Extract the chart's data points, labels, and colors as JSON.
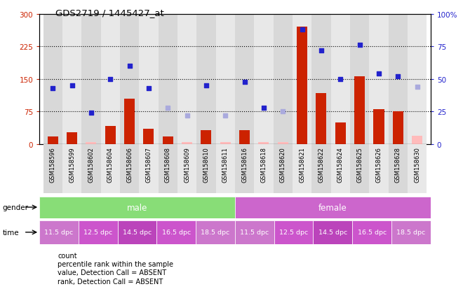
{
  "title": "GDS2719 / 1445427_at",
  "samples": [
    "GSM158596",
    "GSM158599",
    "GSM158602",
    "GSM158604",
    "GSM158606",
    "GSM158607",
    "GSM158608",
    "GSM158609",
    "GSM158610",
    "GSM158611",
    "GSM158616",
    "GSM158618",
    "GSM158620",
    "GSM158621",
    "GSM158622",
    "GSM158624",
    "GSM158625",
    "GSM158626",
    "GSM158628",
    "GSM158630"
  ],
  "bar_values": [
    18,
    28,
    5,
    42,
    105,
    35,
    18,
    5,
    32,
    5,
    32,
    5,
    5,
    270,
    118,
    50,
    157,
    80,
    75,
    20
  ],
  "bar_absent": [
    false,
    false,
    true,
    false,
    false,
    false,
    false,
    true,
    false,
    true,
    false,
    true,
    true,
    false,
    false,
    false,
    false,
    false,
    false,
    true
  ],
  "rank_values": [
    43,
    45,
    24,
    50,
    60,
    43,
    28,
    22,
    45,
    22,
    48,
    28,
    25,
    88,
    72,
    50,
    76,
    54,
    52,
    44
  ],
  "rank_absent": [
    false,
    false,
    false,
    false,
    false,
    false,
    true,
    true,
    false,
    true,
    false,
    false,
    true,
    false,
    false,
    false,
    false,
    false,
    false,
    true
  ],
  "ylim_left": [
    0,
    300
  ],
  "ylim_right": [
    0,
    100
  ],
  "yticks_left": [
    0,
    75,
    150,
    225,
    300
  ],
  "yticks_right": [
    0,
    25,
    50,
    75,
    100
  ],
  "ytick_labels_right": [
    "0",
    "25",
    "50",
    "75",
    "100%"
  ],
  "color_bar_present": "#cc2200",
  "color_bar_absent": "#ffbbbb",
  "color_rank_present": "#2222cc",
  "color_rank_absent": "#aaaadd",
  "color_gender_male": "#88dd77",
  "color_gender_female": "#cc66cc",
  "color_time_colors": [
    "#cc77cc",
    "#cc55cc",
    "#bb44bb",
    "#cc55cc",
    "#cc77cc",
    "#cc77cc",
    "#cc55cc",
    "#bb44bb",
    "#cc55cc",
    "#cc77cc"
  ],
  "color_bg_col_even": "#d8d8d8",
  "color_bg_col_odd": "#e8e8e8",
  "time_labels": [
    "11.5 dpc",
    "12.5 dpc",
    "14.5 dpc",
    "16.5 dpc",
    "18.5 dpc",
    "11.5 dpc",
    "12.5 dpc",
    "14.5 dpc",
    "16.5 dpc",
    "18.5 dpc"
  ],
  "legend_items": [
    "count",
    "percentile rank within the sample",
    "value, Detection Call = ABSENT",
    "rank, Detection Call = ABSENT"
  ],
  "legend_colors": [
    "#cc2200",
    "#2222cc",
    "#ffbbbb",
    "#aaaadd"
  ]
}
